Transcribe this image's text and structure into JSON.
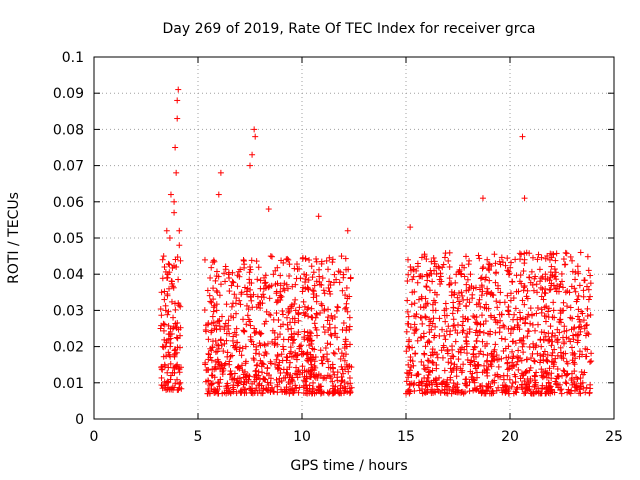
{
  "chart_data": {
    "type": "scatter",
    "title": "Day 269 of 2019, Rate Of TEC Index for receiver grca",
    "xlabel": "GPS time / hours",
    "ylabel": "ROTI / TECUs",
    "xlim": [
      0,
      25
    ],
    "ylim": [
      0,
      0.1
    ],
    "xticks": [
      0,
      5,
      10,
      15,
      20,
      25
    ],
    "xtick_labels": [
      "0",
      "5",
      "10",
      "15",
      "20",
      "25"
    ],
    "yticks": [
      0,
      0.01,
      0.02,
      0.03,
      0.04,
      0.05,
      0.06,
      0.07,
      0.08,
      0.09,
      0.1
    ],
    "ytick_labels": [
      "0",
      "0.01",
      "0.02",
      "0.03",
      "0.04",
      "0.05",
      "0.06",
      "0.07",
      "0.08",
      "0.09",
      "0.1"
    ],
    "grid": true,
    "marker": "+",
    "color": "#ff0000",
    "clusters": [
      {
        "x": [
          3.2,
          4.2
        ],
        "y_low": 0.008,
        "y_high": 0.045,
        "peak": 0.091,
        "peak_x": 4.0
      },
      {
        "x": [
          5.3,
          12.4
        ],
        "y_low": 0.007,
        "y_high": 0.045,
        "peak": 0.08,
        "peak_x": 7.7
      },
      {
        "x": [
          15.0,
          23.9
        ],
        "y_low": 0.007,
        "y_high": 0.046,
        "peak": 0.078,
        "peak_x": 20.6
      }
    ],
    "series": [
      {
        "x": [
          3.2,
          3.25,
          3.3,
          3.35,
          3.4,
          3.45,
          3.5,
          3.55,
          3.6,
          3.65,
          3.7,
          3.75,
          3.8,
          3.85,
          3.9,
          3.95,
          4.0,
          4.05,
          4.1,
          4.15,
          3.3,
          3.5,
          3.7,
          3.9,
          4.0,
          4.0,
          4.05,
          3.95,
          3.85,
          4.1,
          5.5,
          5.7,
          5.9,
          6.1,
          6.3,
          6.5,
          6.7,
          6.9,
          7.1,
          7.3,
          7.5,
          7.7,
          7.9,
          8.1,
          8.3,
          8.5,
          8.7,
          8.9,
          9.1,
          9.3,
          9.5,
          9.7,
          9.9,
          10.1,
          10.3,
          10.5,
          10.7,
          10.9,
          11.1,
          11.3,
          11.5,
          11.7,
          11.9,
          12.1,
          12.3,
          6.0,
          6.1,
          7.5,
          7.6,
          7.7,
          7.75,
          8.4,
          10.8,
          12.2,
          15.1,
          15.3,
          15.5,
          15.7,
          15.9,
          16.1,
          16.3,
          16.5,
          16.7,
          16.9,
          17.1,
          17.3,
          17.5,
          17.7,
          17.9,
          18.1,
          18.3,
          18.5,
          18.7,
          18.9,
          19.1,
          19.3,
          19.5,
          19.7,
          19.9,
          20.1,
          20.3,
          20.5,
          20.7,
          20.9,
          21.1,
          21.3,
          21.5,
          21.7,
          21.9,
          22.1,
          22.3,
          22.5,
          22.7,
          22.9,
          23.1,
          23.3,
          23.5,
          23.7,
          23.9,
          18.7,
          20.6,
          20.7,
          15.2,
          23.4
        ],
        "y": [
          0.025,
          0.035,
          0.02,
          0.045,
          0.015,
          0.03,
          0.01,
          0.04,
          0.022,
          0.05,
          0.012,
          0.038,
          0.028,
          0.06,
          0.018,
          0.042,
          0.015,
          0.032,
          0.052,
          0.01,
          0.044,
          0.052,
          0.062,
          0.075,
          0.083,
          0.088,
          0.091,
          0.068,
          0.057,
          0.048,
          0.018,
          0.012,
          0.03,
          0.022,
          0.038,
          0.015,
          0.028,
          0.01,
          0.035,
          0.02,
          0.042,
          0.025,
          0.012,
          0.032,
          0.018,
          0.045,
          0.022,
          0.014,
          0.036,
          0.026,
          0.011,
          0.03,
          0.02,
          0.04,
          0.016,
          0.028,
          0.034,
          0.019,
          0.024,
          0.038,
          0.013,
          0.031,
          0.045,
          0.022,
          0.028,
          0.062,
          0.068,
          0.07,
          0.073,
          0.08,
          0.078,
          0.058,
          0.056,
          0.052,
          0.02,
          0.035,
          0.012,
          0.028,
          0.045,
          0.016,
          0.03,
          0.009,
          0.038,
          0.022,
          0.042,
          0.014,
          0.026,
          0.034,
          0.011,
          0.04,
          0.02,
          0.032,
          0.008,
          0.036,
          0.018,
          0.043,
          0.024,
          0.012,
          0.03,
          0.038,
          0.015,
          0.028,
          0.044,
          0.01,
          0.026,
          0.035,
          0.02,
          0.04,
          0.014,
          0.03,
          0.022,
          0.038,
          0.012,
          0.028,
          0.018,
          0.034,
          0.01,
          0.026,
          0.016,
          0.061,
          0.078,
          0.061,
          0.053,
          0.046
        ]
      }
    ]
  }
}
